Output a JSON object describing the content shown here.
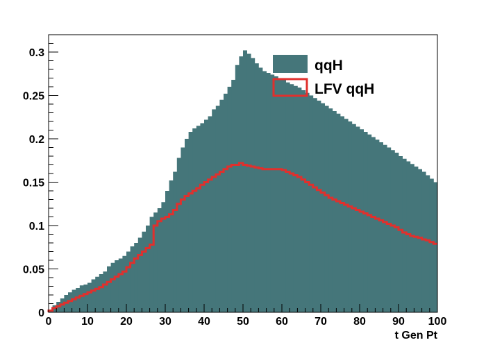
{
  "chart_data": {
    "type": "bar",
    "title": "",
    "xlabel": "t Gen Pt",
    "ylabel": "",
    "xlim": [
      0,
      100
    ],
    "ylim": [
      0,
      0.32
    ],
    "grid": false,
    "legend_position": "top-right",
    "x_ticks": [
      "0",
      "10",
      "20",
      "30",
      "40",
      "50",
      "60",
      "70",
      "80",
      "90",
      "100"
    ],
    "y_ticks": [
      "0",
      "0.05",
      "0.1",
      "0.15",
      "0.2",
      "0.25",
      "0.3"
    ],
    "bin_width": 1,
    "series": [
      {
        "name": "qqH",
        "style": "filled",
        "color": "#45767a",
        "values": [
          0.003,
          0.008,
          0.012,
          0.016,
          0.02,
          0.023,
          0.026,
          0.028,
          0.031,
          0.032,
          0.034,
          0.038,
          0.041,
          0.044,
          0.047,
          0.053,
          0.057,
          0.06,
          0.062,
          0.065,
          0.07,
          0.076,
          0.08,
          0.086,
          0.093,
          0.1,
          0.11,
          0.115,
          0.12,
          0.127,
          0.14,
          0.152,
          0.162,
          0.178,
          0.19,
          0.2,
          0.208,
          0.212,
          0.215,
          0.218,
          0.222,
          0.226,
          0.234,
          0.238,
          0.245,
          0.252,
          0.26,
          0.268,
          0.285,
          0.295,
          0.302,
          0.298,
          0.293,
          0.287,
          0.282,
          0.278,
          0.276,
          0.274,
          0.272,
          0.27,
          0.268,
          0.265,
          0.263,
          0.261,
          0.259,
          0.256,
          0.253,
          0.25,
          0.247,
          0.244,
          0.241,
          0.238,
          0.235,
          0.232,
          0.229,
          0.226,
          0.223,
          0.22,
          0.217,
          0.214,
          0.211,
          0.208,
          0.205,
          0.202,
          0.199,
          0.196,
          0.193,
          0.19,
          0.187,
          0.184,
          0.18,
          0.177,
          0.174,
          0.171,
          0.168,
          0.165,
          0.162,
          0.158,
          0.154,
          0.15
        ]
      },
      {
        "name": "LFV qqH",
        "style": "outline",
        "color": "#e0302d",
        "values": [
          0.002,
          0.005,
          0.007,
          0.009,
          0.011,
          0.013,
          0.015,
          0.017,
          0.019,
          0.021,
          0.023,
          0.025,
          0.027,
          0.029,
          0.032,
          0.035,
          0.038,
          0.041,
          0.044,
          0.047,
          0.052,
          0.057,
          0.062,
          0.066,
          0.07,
          0.074,
          0.078,
          0.1,
          0.105,
          0.108,
          0.11,
          0.113,
          0.118,
          0.125,
          0.13,
          0.134,
          0.137,
          0.14,
          0.143,
          0.147,
          0.15,
          0.153,
          0.156,
          0.159,
          0.162,
          0.165,
          0.168,
          0.17,
          0.17,
          0.172,
          0.17,
          0.169,
          0.168,
          0.167,
          0.166,
          0.165,
          0.165,
          0.165,
          0.165,
          0.165,
          0.164,
          0.162,
          0.16,
          0.158,
          0.156,
          0.153,
          0.15,
          0.147,
          0.144,
          0.141,
          0.138,
          0.135,
          0.132,
          0.13,
          0.128,
          0.126,
          0.124,
          0.122,
          0.12,
          0.118,
          0.116,
          0.114,
          0.112,
          0.11,
          0.108,
          0.106,
          0.104,
          0.102,
          0.1,
          0.098,
          0.095,
          0.092,
          0.09,
          0.088,
          0.087,
          0.086,
          0.084,
          0.083,
          0.081,
          0.079
        ]
      }
    ]
  }
}
